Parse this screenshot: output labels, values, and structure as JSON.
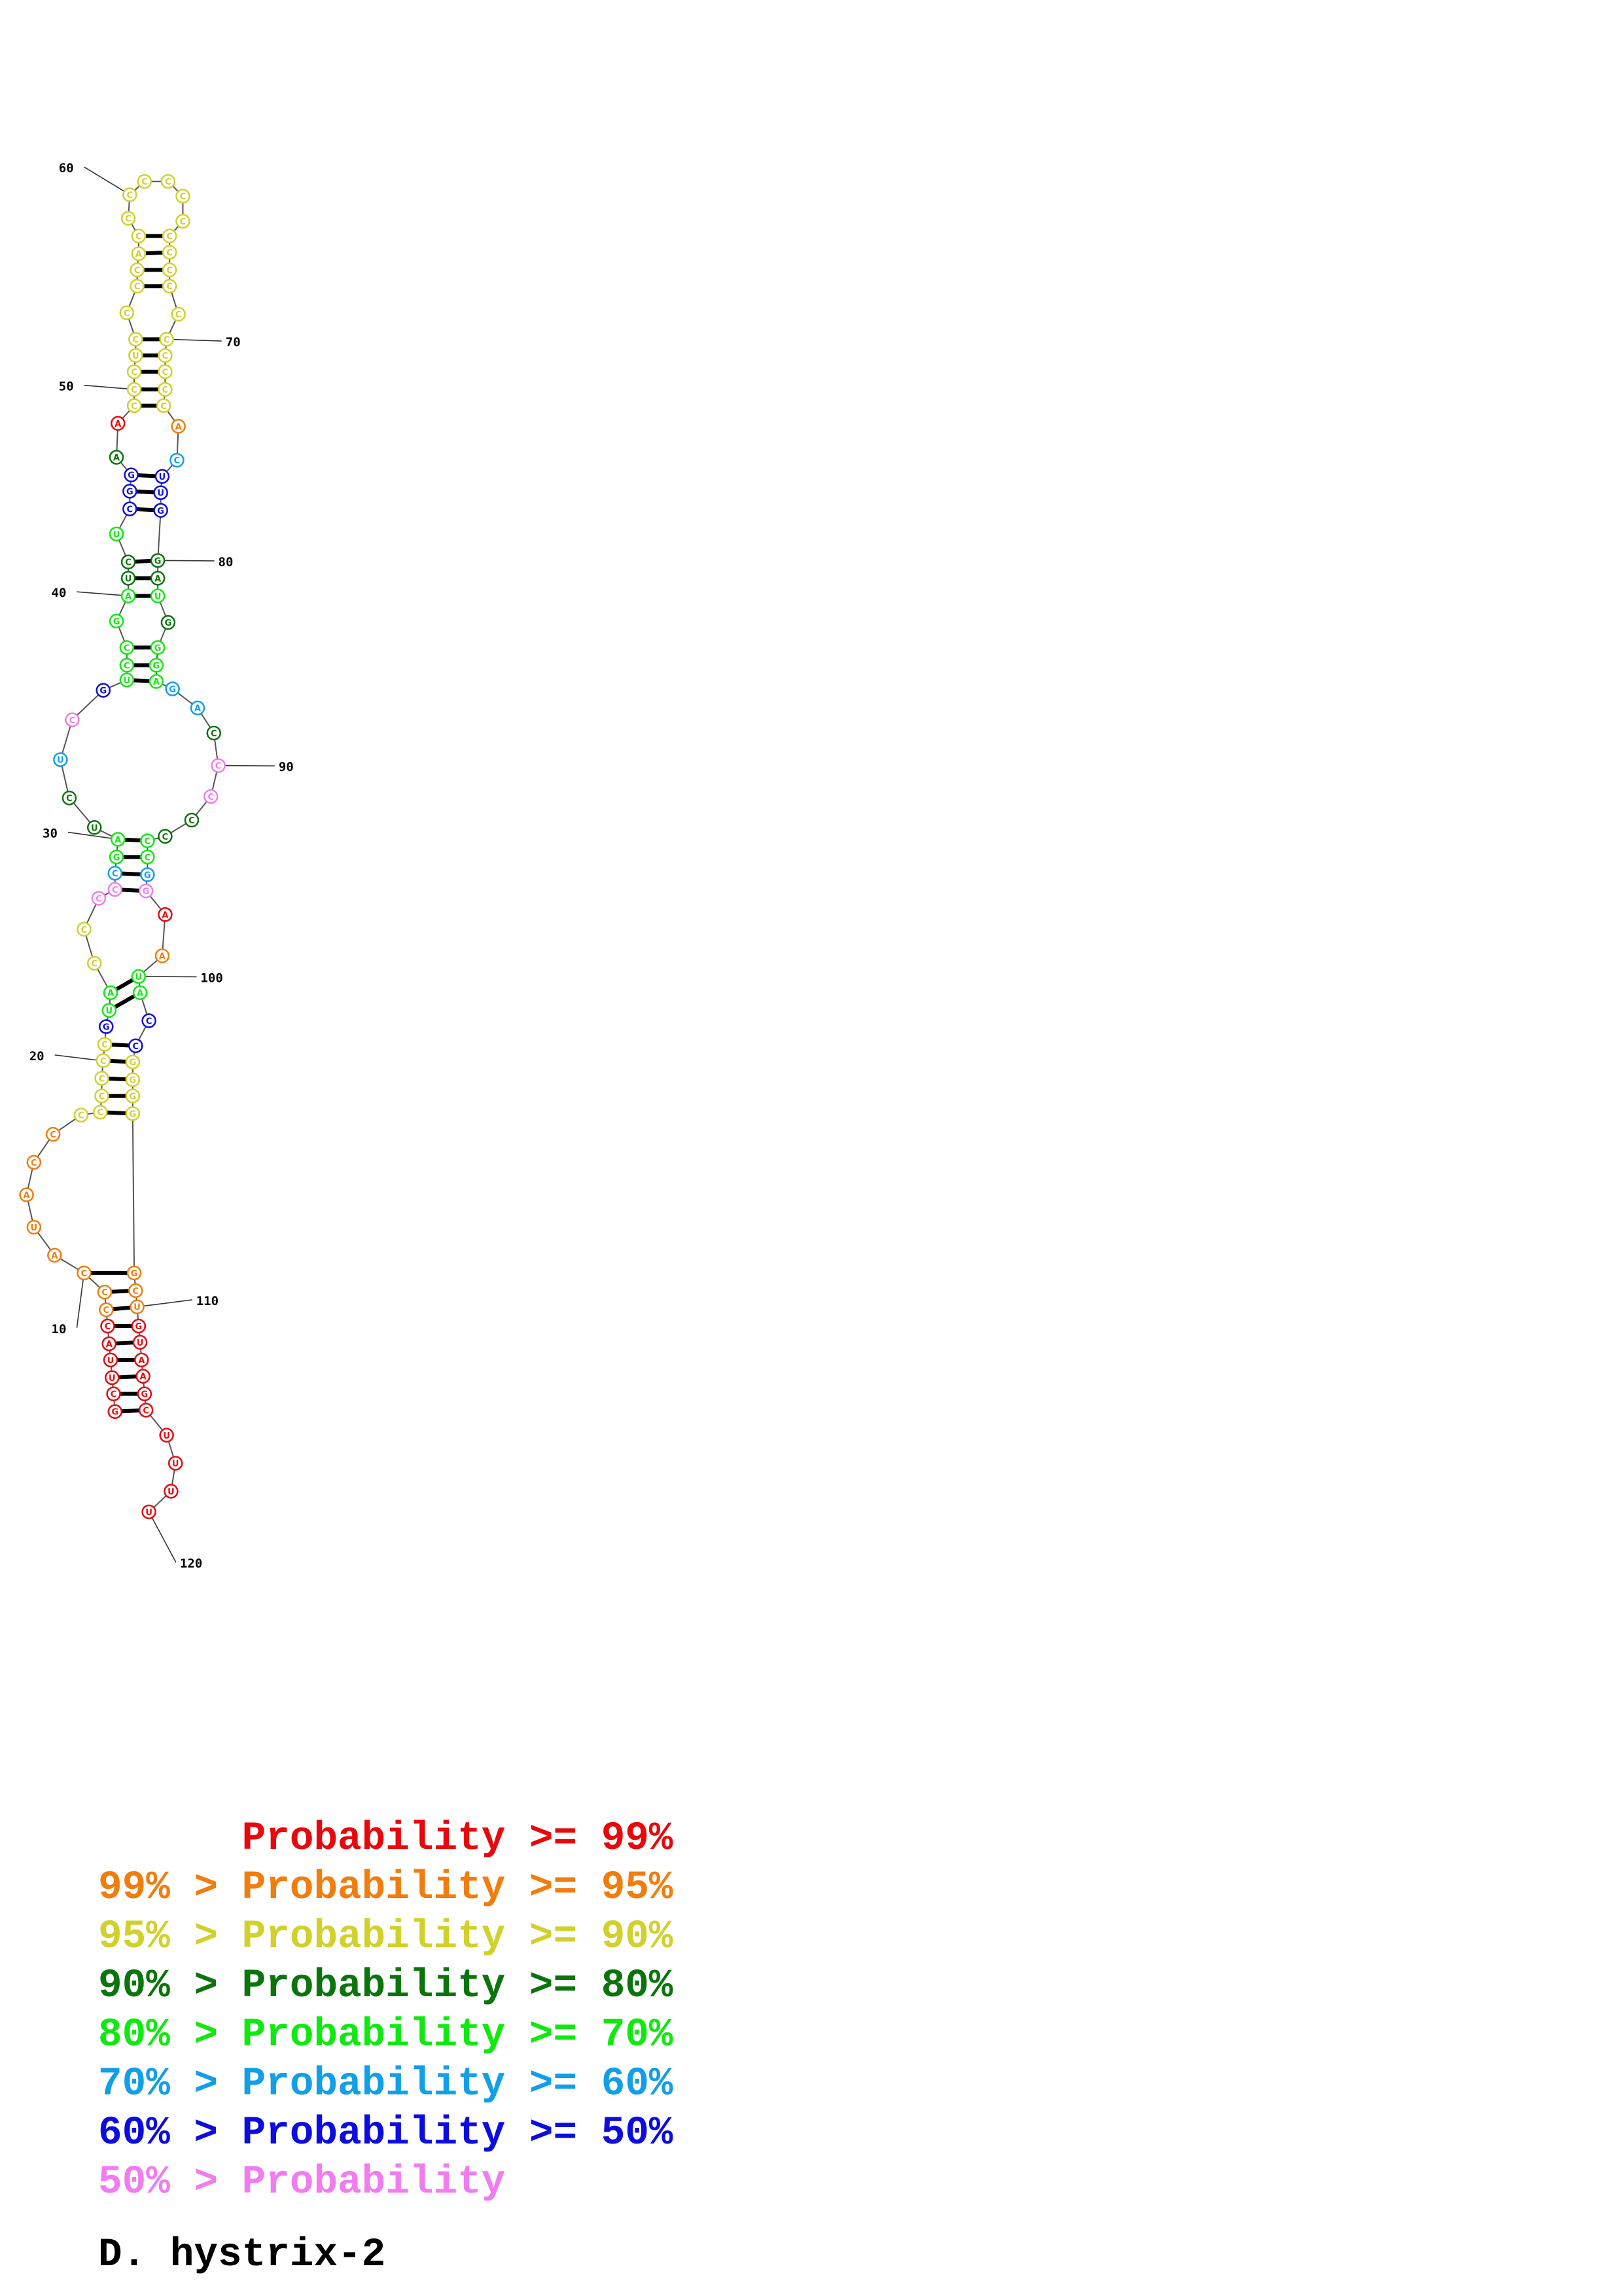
{
  "structure": {
    "bases": [
      {
        "n": 9,
        "b": "C",
        "c": "orange"
      },
      {
        "n": 10,
        "b": "A",
        "c": "orange"
      },
      {
        "n": 11,
        "b": "U",
        "c": "orange"
      },
      {
        "n": 12,
        "b": "A",
        "c": "orange"
      },
      {
        "n": 13,
        "b": "C",
        "c": "orange"
      },
      {
        "n": 14,
        "b": "C",
        "c": "orange"
      },
      {
        "n": 15,
        "b": "C",
        "c": "yellow"
      },
      {
        "n": 16,
        "b": "C",
        "c": "yellow"
      },
      {
        "n": 17,
        "b": "C",
        "c": "yellow"
      },
      {
        "n": 18,
        "b": "C",
        "c": "yellow"
      },
      {
        "n": 19,
        "b": "C",
        "c": "yellow"
      },
      {
        "n": 20,
        "b": "C",
        "c": "yellow"
      },
      {
        "n": 21,
        "b": "G",
        "c": "blue"
      },
      {
        "n": 22,
        "b": "U",
        "c": "green"
      },
      {
        "n": 23,
        "b": "A",
        "c": "green"
      },
      {
        "n": 24,
        "b": "C",
        "c": "yellow"
      },
      {
        "n": 25,
        "b": "C",
        "c": "yellow"
      },
      {
        "n": 26,
        "b": "C",
        "c": "pink"
      },
      {
        "n": 27,
        "b": "C",
        "c": "pink"
      },
      {
        "n": 28,
        "b": "C",
        "c": "cyan"
      },
      {
        "n": 29,
        "b": "G",
        "c": "green"
      },
      {
        "n": 30,
        "b": "A",
        "c": "green"
      },
      {
        "n": 31,
        "b": "U",
        "c": "dgreen"
      },
      {
        "n": 32,
        "b": "C",
        "c": "dgreen"
      },
      {
        "n": 33,
        "b": "U",
        "c": "cyan"
      },
      {
        "n": 34,
        "b": "C",
        "c": "pink"
      },
      {
        "n": 35,
        "b": "G",
        "c": "blue"
      },
      {
        "n": 36,
        "b": "U",
        "c": "green"
      },
      {
        "n": 37,
        "b": "C",
        "c": "green"
      },
      {
        "n": 38,
        "b": "C",
        "c": "green"
      },
      {
        "n": 39,
        "b": "G",
        "c": "green"
      },
      {
        "n": 40,
        "b": "A",
        "c": "green"
      },
      {
        "n": 41,
        "b": "U",
        "c": "dgreen"
      },
      {
        "n": 42,
        "b": "C",
        "c": "dgreen"
      },
      {
        "n": 43,
        "b": "U",
        "c": "green"
      },
      {
        "n": 44,
        "b": "C",
        "c": "blue"
      },
      {
        "n": 45,
        "b": "G",
        "c": "blue"
      },
      {
        "n": 46,
        "b": "G",
        "c": "blue"
      },
      {
        "n": 47,
        "b": "A",
        "c": "dgreen"
      },
      {
        "n": 48,
        "b": "A",
        "c": "red"
      },
      {
        "n": 49,
        "b": "C",
        "c": "yellow"
      },
      {
        "n": 50,
        "b": "C",
        "c": "yellow"
      },
      {
        "n": 51,
        "b": "C",
        "c": "yellow"
      },
      {
        "n": 52,
        "b": "U",
        "c": "yellow"
      },
      {
        "n": 53,
        "b": "C",
        "c": "yellow"
      },
      {
        "n": 54,
        "b": "C",
        "c": "yellow"
      },
      {
        "n": 55,
        "b": "C",
        "c": "yellow"
      },
      {
        "n": 56,
        "b": "C",
        "c": "yellow"
      },
      {
        "n": 57,
        "b": "A",
        "c": "yellow"
      },
      {
        "n": 58,
        "b": "C",
        "c": "yellow"
      },
      {
        "n": 59,
        "b": "C",
        "c": "yellow"
      },
      {
        "n": 60,
        "b": "C",
        "c": "yellow"
      },
      {
        "n": 61,
        "b": "C",
        "c": "yellow"
      },
      {
        "n": 62,
        "b": "C",
        "c": "yellow"
      },
      {
        "n": 63,
        "b": "C",
        "c": "yellow"
      },
      {
        "n": 64,
        "b": "C",
        "c": "yellow"
      },
      {
        "n": 65,
        "b": "C",
        "c": "yellow"
      },
      {
        "n": 66,
        "b": "C",
        "c": "yellow"
      },
      {
        "n": 67,
        "b": "C",
        "c": "yellow"
      },
      {
        "n": 68,
        "b": "C",
        "c": "yellow"
      },
      {
        "n": 69,
        "b": "C",
        "c": "yellow"
      },
      {
        "n": 70,
        "b": "C",
        "c": "yellow"
      },
      {
        "n": 71,
        "b": "C",
        "c": "yellow"
      },
      {
        "n": 72,
        "b": "C",
        "c": "yellow"
      },
      {
        "n": 73,
        "b": "C",
        "c": "yellow"
      },
      {
        "n": 74,
        "b": "C",
        "c": "yellow"
      },
      {
        "n": 75,
        "b": "A",
        "c": "orange"
      },
      {
        "n": 76,
        "b": "C",
        "c": "cyan"
      },
      {
        "n": 77,
        "b": "U",
        "c": "blue"
      },
      {
        "n": 78,
        "b": "U",
        "c": "blue"
      },
      {
        "n": 79,
        "b": "G",
        "c": "blue"
      },
      {
        "n": 80,
        "b": "G",
        "c": "dgreen"
      },
      {
        "n": 81,
        "b": "A",
        "c": "dgreen"
      },
      {
        "n": 82,
        "b": "U",
        "c": "green"
      },
      {
        "n": 83,
        "b": "G",
        "c": "dgreen"
      },
      {
        "n": 84,
        "b": "G",
        "c": "green"
      },
      {
        "n": 85,
        "b": "G",
        "c": "green"
      },
      {
        "n": 86,
        "b": "A",
        "c": "green"
      },
      {
        "n": 87,
        "b": "G",
        "c": "cyan"
      },
      {
        "n": 88,
        "b": "A",
        "c": "cyan"
      },
      {
        "n": 89,
        "b": "C",
        "c": "dgreen"
      },
      {
        "n": 90,
        "b": "C",
        "c": "pink"
      },
      {
        "n": 91,
        "b": "C",
        "c": "pink"
      },
      {
        "n": 92,
        "b": "C",
        "c": "dgreen"
      },
      {
        "n": 93,
        "b": "C",
        "c": "dgreen"
      },
      {
        "n": 94,
        "b": "C",
        "c": "green"
      },
      {
        "n": 95,
        "b": "C",
        "c": "green"
      },
      {
        "n": 96,
        "b": "G",
        "c": "cyan"
      },
      {
        "n": 97,
        "b": "G",
        "c": "pink"
      },
      {
        "n": 98,
        "b": "A",
        "c": "red"
      },
      {
        "n": 99,
        "b": "A",
        "c": "orange"
      },
      {
        "n": 100,
        "b": "U",
        "c": "green"
      },
      {
        "n": 101,
        "b": "A",
        "c": "green"
      },
      {
        "n": 102,
        "b": "C",
        "c": "blue"
      },
      {
        "n": 103,
        "b": "C",
        "c": "blue"
      },
      {
        "n": 104,
        "b": "G",
        "c": "yellow"
      },
      {
        "n": 105,
        "b": "G",
        "c": "yellow"
      },
      {
        "n": 106,
        "b": "G",
        "c": "yellow"
      },
      {
        "n": 107,
        "b": "G",
        "c": "yellow"
      },
      {
        "n": 108,
        "b": "G",
        "c": "orange"
      },
      {
        "n": 109,
        "b": "C",
        "c": "orange"
      },
      {
        "n": 110,
        "b": "U",
        "c": "orange"
      },
      {
        "n": 111,
        "b": "G",
        "c": "red"
      },
      {
        "n": 112,
        "b": "U",
        "c": "red"
      },
      {
        "n": 113,
        "b": "A",
        "c": "red"
      },
      {
        "n": 114,
        "b": "A",
        "c": "red"
      },
      {
        "n": 115,
        "b": "G",
        "c": "red"
      },
      {
        "n": 116,
        "b": "C",
        "c": "red"
      },
      {
        "n": 117,
        "b": "U",
        "c": "red"
      },
      {
        "n": 118,
        "b": "U",
        "c": "red"
      },
      {
        "n": 119,
        "b": "U",
        "c": "red"
      },
      {
        "n": 120,
        "b": "U",
        "c": "red"
      },
      {
        "n": 1,
        "b": "G",
        "c": "red"
      },
      {
        "n": 2,
        "b": "C",
        "c": "red"
      },
      {
        "n": 3,
        "b": "U",
        "c": "red"
      },
      {
        "n": 4,
        "b": "U",
        "c": "red"
      },
      {
        "n": 5,
        "b": "A",
        "c": "red"
      },
      {
        "n": 6,
        "b": "C",
        "c": "red"
      },
      {
        "n": 7,
        "b": "C",
        "c": "orange"
      },
      {
        "n": 8,
        "b": "C",
        "c": "orange"
      }
    ],
    "index_labels": [
      "60",
      "70",
      "50",
      "80",
      "40",
      "90",
      "30",
      "100",
      "20",
      "110",
      "10",
      "120"
    ]
  },
  "legend": {
    "lines": [
      {
        "text": "      Probability >= 99%",
        "color": "#e8070c"
      },
      {
        "text": "99% > Probability >= 95%",
        "color": "#f07d0d"
      },
      {
        "text": "95% > Probability >= 90%",
        "color": "#d1d12c"
      },
      {
        "text": "90% > Probability >= 80%",
        "color": "#0c740c"
      },
      {
        "text": "80% > Probability >= 70%",
        "color": "#10e910"
      },
      {
        "text": "70% > Probability >= 60%",
        "color": "#129fe7"
      },
      {
        "text": "60% > Probability >= 50%",
        "color": "#0c0ce0"
      },
      {
        "text": "50% > Probability",
        "color": "#f07df0"
      }
    ]
  },
  "organism": "D. hystrix-2",
  "colors": {
    "red": "#e8070c",
    "orange": "#f07d0d",
    "yellow": "#d1d12c",
    "dgreen": "#0c740c",
    "green": "#10e910",
    "cyan": "#129fe7",
    "blue": "#0c0ce0",
    "pink": "#f07df0"
  }
}
